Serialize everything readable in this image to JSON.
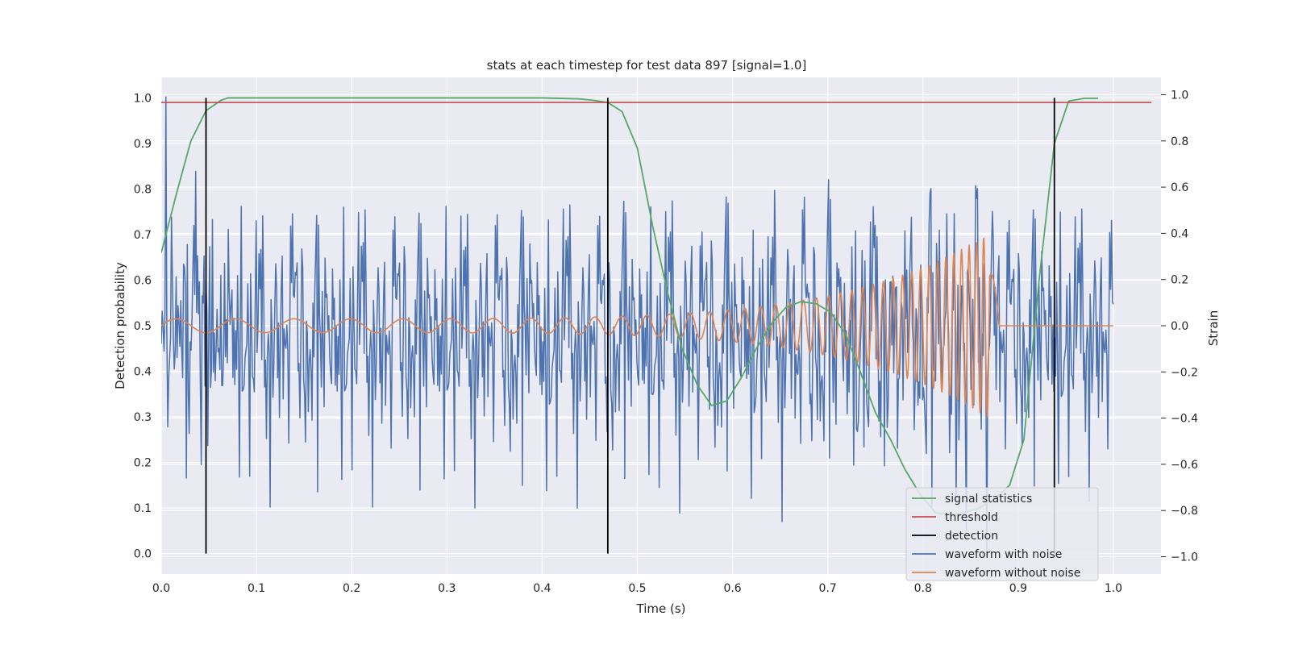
{
  "chart_data": {
    "type": "line",
    "title": "stats at each timestep for test data 897 [signal=1.0]",
    "xlabel": "Time (s)",
    "ylabel": "Detection probability",
    "y2label": "Strain",
    "xlim": [
      0.0,
      1.05
    ],
    "ylim": [
      -0.045,
      1.045
    ],
    "y2lim": [
      -1.075,
      1.075
    ],
    "xticks": [
      "0.0",
      "0.1",
      "0.2",
      "0.3",
      "0.4",
      "0.5",
      "0.6",
      "0.7",
      "0.8",
      "0.9",
      "1.0"
    ],
    "yticks": [
      "0.0",
      "0.1",
      "0.2",
      "0.3",
      "0.4",
      "0.5",
      "0.6",
      "0.7",
      "0.8",
      "0.9",
      "1.0"
    ],
    "y2ticks": [
      "−1.0",
      "−0.8",
      "−0.6",
      "−0.4",
      "−0.2",
      "0.0",
      "0.2",
      "0.4",
      "0.6",
      "0.8",
      "1.0"
    ],
    "grid": true,
    "legend_position": "lower-right",
    "series": [
      {
        "name": "signal statistics",
        "color": "#55a868",
        "axis": "left",
        "x": [
          0.0,
          0.016,
          0.031,
          0.047,
          0.063,
          0.07,
          0.1,
          0.2,
          0.3,
          0.4,
          0.438,
          0.453,
          0.469,
          0.484,
          0.5,
          0.516,
          0.531,
          0.547,
          0.563,
          0.578,
          0.594,
          0.609,
          0.625,
          0.641,
          0.656,
          0.672,
          0.688,
          0.703,
          0.719,
          0.734,
          0.75,
          0.766,
          0.781,
          0.797,
          0.813,
          0.828,
          0.844,
          0.859,
          0.875,
          0.891,
          0.906,
          0.922,
          0.938,
          0.953,
          0.969,
          0.984
        ],
        "values": [
          0.66,
          0.79,
          0.905,
          0.972,
          0.995,
          1.0,
          1.0,
          1.0,
          1.0,
          1.0,
          0.998,
          0.995,
          0.99,
          0.97,
          0.89,
          0.72,
          0.58,
          0.45,
          0.37,
          0.325,
          0.335,
          0.385,
          0.45,
          0.505,
          0.54,
          0.553,
          0.548,
          0.53,
          0.48,
          0.4,
          0.31,
          0.25,
          0.185,
          0.13,
          0.09,
          0.085,
          0.09,
          0.1,
          0.12,
          0.15,
          0.25,
          0.6,
          0.9,
          0.993,
          0.999,
          0.999
        ]
      },
      {
        "name": "threshold",
        "color": "#c44e52",
        "axis": "left",
        "x": [
          0.0,
          1.04
        ],
        "values": [
          0.99,
          0.99
        ]
      },
      {
        "name": "detection",
        "color": "#000000",
        "axis": "left",
        "type": "vlines",
        "x": [
          0.047,
          0.469,
          0.938
        ],
        "ymin": 0.0,
        "ymax": 1.0
      },
      {
        "name": "waveform with noise",
        "color": "#4c72b0",
        "axis": "right",
        "n_points": 1024,
        "x_range": [
          0.0,
          1.0
        ],
        "noise_amplitude": 0.3,
        "seed": 897
      },
      {
        "name": "waveform without noise",
        "color": "#dd8452",
        "axis": "right",
        "x_range": [
          0.0,
          1.0
        ],
        "chirp_f0_hz": 16,
        "chirp_f1_hz": 110,
        "amplitude_start": 0.03,
        "amplitude_peak": 0.4,
        "merger_time": 0.87,
        "ringdown_end": 0.88
      }
    ]
  }
}
